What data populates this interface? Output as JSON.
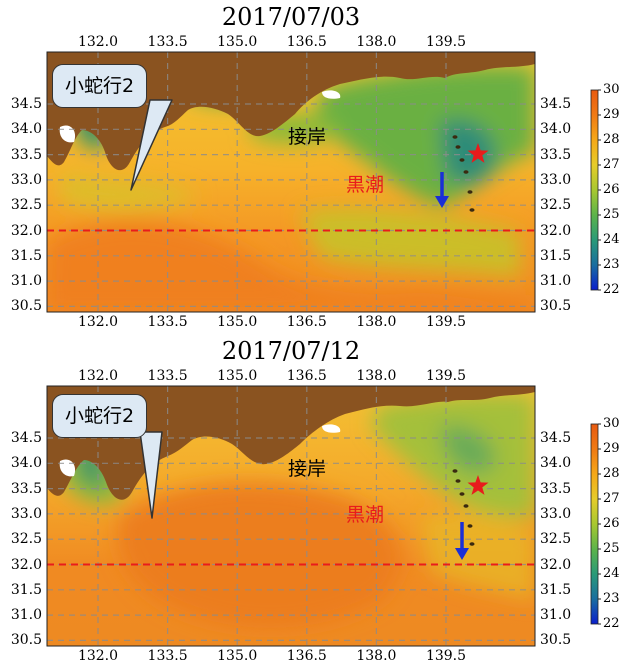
{
  "panels": [
    {
      "title": "2017/07/03",
      "callout": "小蛇行2",
      "coast_label": "接岸",
      "kuroshio_label": "黒潮"
    },
    {
      "title": "2017/07/12",
      "callout": "小蛇行2",
      "coast_label": "接岸",
      "kuroshio_label": "黒潮"
    }
  ],
  "lon_ticks": [
    "132.0",
    "133.5",
    "135.0",
    "136.5",
    "138.0",
    "139.5"
  ],
  "lat_ticks": [
    "34.5",
    "34.0",
    "33.5",
    "33.0",
    "32.5",
    "32.0",
    "31.5",
    "31.0",
    "30.5"
  ],
  "colorbar": {
    "ticks": [
      "30",
      "29",
      "28",
      "27",
      "26",
      "25",
      "24",
      "23",
      "22"
    ],
    "min": 22,
    "max": 30,
    "colormap": [
      "#0a1ecc",
      "#1a6ea0",
      "#2a9a78",
      "#5cb44a",
      "#a8c830",
      "#e6cc2a",
      "#f5a818",
      "#f07a14",
      "#e85a10"
    ]
  },
  "reference_line_latitude": 32.0,
  "markers": [
    "red-star",
    "blue-arrow"
  ],
  "colors": {
    "land": "#8a5320",
    "reference_line": "#e81c1c",
    "label_red": "#e81c1c",
    "arrow": "#1a2fd8",
    "star": "#e81c1c",
    "callout_fill": "#dde9f4"
  }
}
